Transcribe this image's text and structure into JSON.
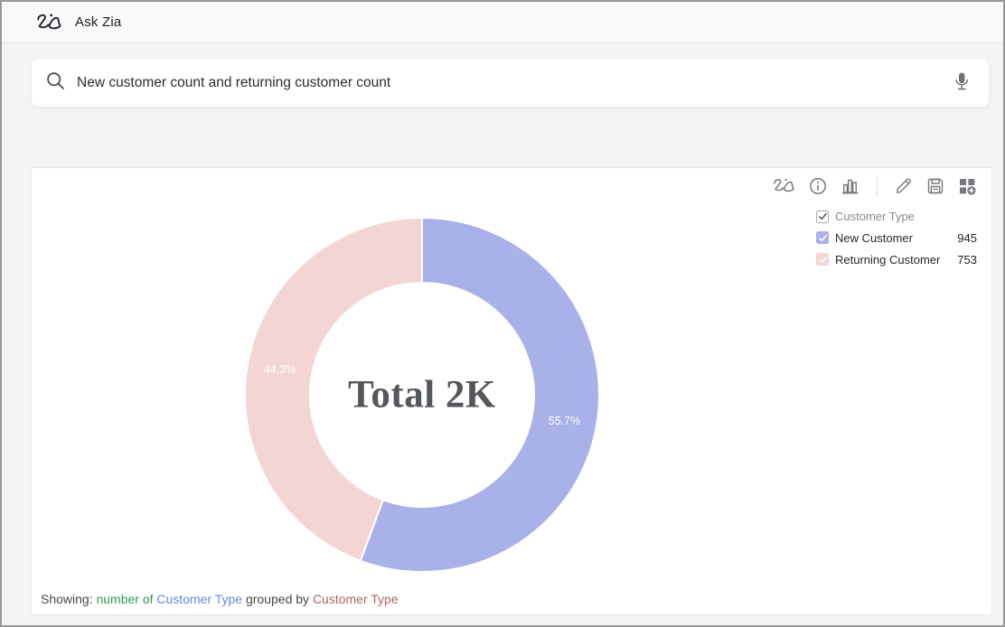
{
  "header": {
    "title": "Ask Zia"
  },
  "search": {
    "value": "New customer count and returning customer count",
    "icons": [
      "search-icon",
      "microphone-icon"
    ]
  },
  "toolbar": {
    "icons": [
      "zia-icon",
      "info-icon",
      "chart-type-icon",
      "edit-icon",
      "save-icon",
      "add-to-dashboard-icon"
    ]
  },
  "legend": {
    "title": "Customer Type",
    "items": [
      {
        "label": "New Customer",
        "value": "945",
        "color": "#a9b1e9",
        "checked": true
      },
      {
        "label": "Returning Customer",
        "value": "753",
        "color": "#f3d5d4",
        "checked": true
      }
    ]
  },
  "chart_data": {
    "type": "pie",
    "subtype": "donut",
    "title": "",
    "categories": [
      "New Customer",
      "Returning Customer"
    ],
    "values": [
      945,
      753
    ],
    "percent_labels": [
      "55.7%",
      "44.3%"
    ],
    "colors": [
      "#a9b1e9",
      "#f3d5d4"
    ],
    "center_label": "Total 2K",
    "total": 1698,
    "legend_title": "Customer Type",
    "legend_position": "top-right",
    "start_angle_deg": -90,
    "direction": "clockwise"
  },
  "footer": {
    "showing_label": "Showing:",
    "aggregate": "number of",
    "measure_field": "Customer Type",
    "grouped_by_label": "grouped by",
    "group_field": "Customer Type"
  },
  "colors": {
    "slice_new_customer": "#a9b1e9",
    "slice_returning_customer": "#f3d5d4",
    "footer_aggregate": "#2e9e48",
    "footer_measure": "#6288dd",
    "footer_group": "#b06261"
  }
}
